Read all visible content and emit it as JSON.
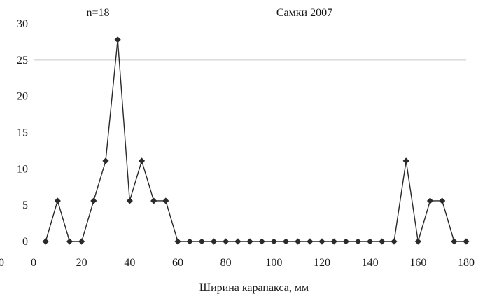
{
  "chart_data": {
    "type": "line",
    "annotation_left": "n=18",
    "title": "Самки 2007",
    "xlabel": "Ширина карапакса, мм",
    "ylabel": "",
    "xlim": [
      0,
      180
    ],
    "ylim": [
      0,
      30
    ],
    "x_ticks": [
      0,
      20,
      40,
      60,
      80,
      100,
      120,
      140,
      160,
      180
    ],
    "y_ticks": [
      0,
      5,
      10,
      15,
      20,
      25,
      30
    ],
    "stray_x_tick_label": "0",
    "grid": "horizontal",
    "marker": "diamond",
    "series": [
      {
        "x": [
          5,
          10,
          15,
          20,
          25,
          30,
          35,
          40,
          45,
          50,
          55,
          60,
          65,
          70,
          75,
          80,
          85,
          90,
          95,
          100,
          105,
          110,
          115,
          120,
          125,
          130,
          135,
          140,
          145,
          150,
          155,
          160,
          165,
          170,
          175,
          180
        ],
        "values": [
          0,
          5.6,
          0,
          0,
          5.6,
          11.1,
          27.8,
          5.6,
          11.1,
          5.6,
          5.6,
          0,
          0,
          0,
          0,
          0,
          0,
          0,
          0,
          0,
          0,
          0,
          0,
          0,
          0,
          0,
          0,
          0,
          0,
          0,
          11.1,
          0,
          5.6,
          5.6,
          0,
          0
        ]
      }
    ],
    "colors": {
      "line": "#2a2a2a",
      "grid": "#c8c8c8",
      "axis": "#888888"
    }
  }
}
